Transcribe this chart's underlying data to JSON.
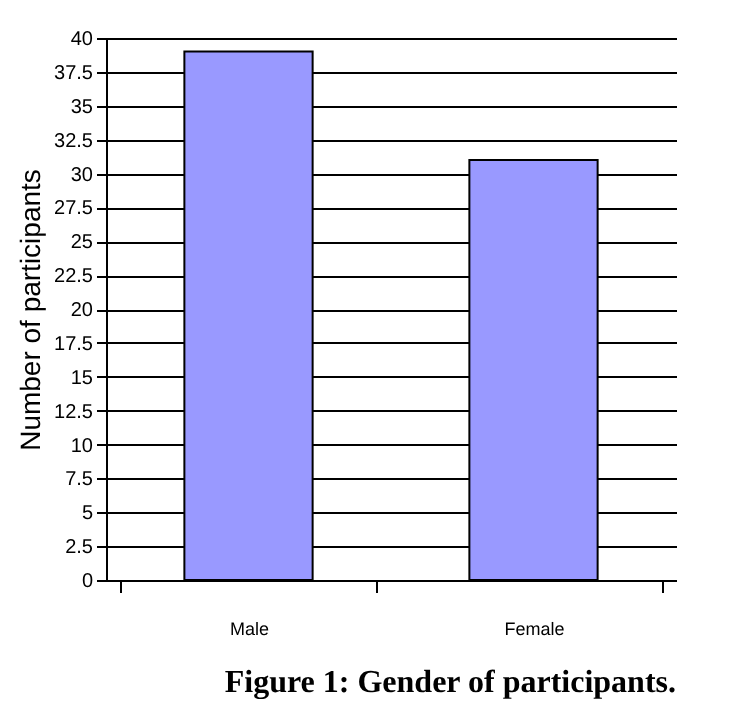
{
  "chart_data": {
    "type": "bar",
    "title": "Figure 1: Gender of participants.",
    "ylabel": "Number of participants",
    "categories": [
      "Male",
      "Female"
    ],
    "values": [
      39,
      31
    ],
    "color": "#9999ff",
    "ylim": [
      0,
      40
    ],
    "yticks": [
      0,
      2.5,
      5,
      7.5,
      10,
      12.5,
      15,
      17.5,
      20,
      22.5,
      25,
      27.5,
      30,
      32.5,
      35,
      37.5,
      40
    ],
    "grid": "y"
  }
}
